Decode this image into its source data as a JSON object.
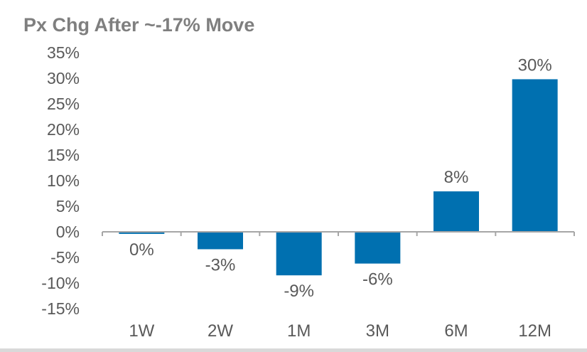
{
  "chart_data": {
    "type": "bar",
    "title": "Px Chg After ~-17% Move",
    "xlabel": "",
    "ylabel": "",
    "categories": [
      "1W",
      "2W",
      "1M",
      "3M",
      "6M",
      "12M"
    ],
    "values": [
      -0.4,
      -3.4,
      -8.5,
      -6.2,
      7.9,
      29.8
    ],
    "data_labels": [
      "0%",
      "-3%",
      "-9%",
      "-6%",
      "8%",
      "30%"
    ],
    "ylim": [
      -15,
      35
    ],
    "yticks": [
      35,
      30,
      25,
      20,
      15,
      10,
      5,
      0,
      -5,
      -10,
      -15
    ],
    "ytick_labels": [
      "35%",
      "30%",
      "25%",
      "20%",
      "15%",
      "10%",
      "5%",
      "0%",
      "-5%",
      "-10%",
      "-15%"
    ],
    "grid": false,
    "legend": "none",
    "bar_color": "#0070b0",
    "axis_color": "#a6a6a6",
    "text_color": "#595959",
    "title_color": "#7f7f7f"
  }
}
